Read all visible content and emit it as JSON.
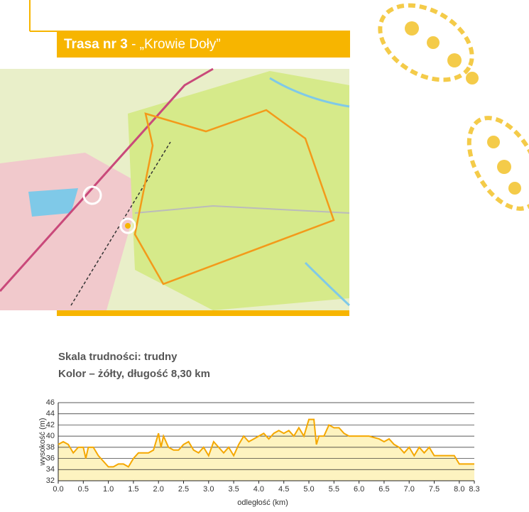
{
  "header": {
    "route_number": "Trasa nr 3",
    "route_name": "- „Krowie Doły”"
  },
  "info": {
    "difficulty": "Skala trudności: trudny",
    "color_length": "Kolor – żółty, długość 8,30 km"
  },
  "chart_data": {
    "type": "area",
    "xlabel": "odległość (km)",
    "ylabel": "wysokość (m)",
    "color": "#f5a800",
    "fill": "#fdf3c0",
    "x": [
      0.0,
      0.1,
      0.2,
      0.3,
      0.4,
      0.5,
      0.55,
      0.6,
      0.7,
      0.8,
      0.9,
      1.0,
      1.1,
      1.2,
      1.3,
      1.4,
      1.5,
      1.6,
      1.7,
      1.8,
      1.9,
      2.0,
      2.05,
      2.1,
      2.2,
      2.3,
      2.4,
      2.5,
      2.6,
      2.7,
      2.8,
      2.9,
      3.0,
      3.1,
      3.2,
      3.3,
      3.4,
      3.5,
      3.6,
      3.7,
      3.8,
      3.9,
      4.0,
      4.1,
      4.2,
      4.3,
      4.4,
      4.5,
      4.6,
      4.7,
      4.8,
      4.9,
      5.0,
      5.1,
      5.15,
      5.2,
      5.3,
      5.4,
      5.5,
      5.6,
      5.7,
      5.8,
      5.9,
      6.0,
      6.2,
      6.4,
      6.5,
      6.6,
      6.7,
      6.8,
      6.9,
      7.0,
      7.1,
      7.2,
      7.3,
      7.4,
      7.5,
      7.7,
      7.9,
      8.0,
      8.1,
      8.3
    ],
    "values": [
      38.5,
      39,
      38.5,
      37,
      38,
      38,
      36,
      38,
      38,
      36.5,
      35.5,
      34.5,
      34.5,
      35,
      35,
      34.5,
      36,
      37,
      37,
      37,
      37.5,
      40.5,
      38,
      40,
      38,
      37.5,
      37.5,
      38.5,
      39,
      37.5,
      37,
      38,
      36.5,
      39,
      38,
      37,
      38,
      36.5,
      38.5,
      40,
      39,
      39.5,
      40,
      40.5,
      39.5,
      40.5,
      41,
      40.5,
      41,
      40,
      41.5,
      40,
      43,
      43,
      38.5,
      40,
      40,
      42,
      41.5,
      41.5,
      40.5,
      40,
      40,
      40,
      40,
      39.5,
      39,
      39.5,
      38.5,
      38,
      37,
      38,
      36.5,
      38,
      37,
      38,
      36.5,
      36.5,
      36.5,
      35,
      35,
      35
    ],
    "xlim": [
      0,
      8.3
    ],
    "ylim": [
      32,
      46
    ],
    "xticks": [
      {
        "value": 0,
        "label": "0.0"
      },
      0.5,
      {
        "value": 1,
        "label": "1.0"
      },
      1.5,
      {
        "value": 2,
        "label": "2.0"
      },
      2.5,
      {
        "value": 3,
        "label": "3.0"
      },
      3.5,
      {
        "value": 4,
        "label": "4.0"
      },
      4.5,
      {
        "value": 5,
        "label": "5.0"
      },
      5.5,
      {
        "value": 6,
        "label": "6.0"
      },
      6.5,
      {
        "value": 7,
        "label": "7.0"
      },
      7.5,
      {
        "value": 8,
        "label": "8.0"
      },
      8.3
    ],
    "yticks": [
      32,
      34,
      36,
      38,
      40,
      42,
      44,
      46
    ],
    "grid": true
  }
}
